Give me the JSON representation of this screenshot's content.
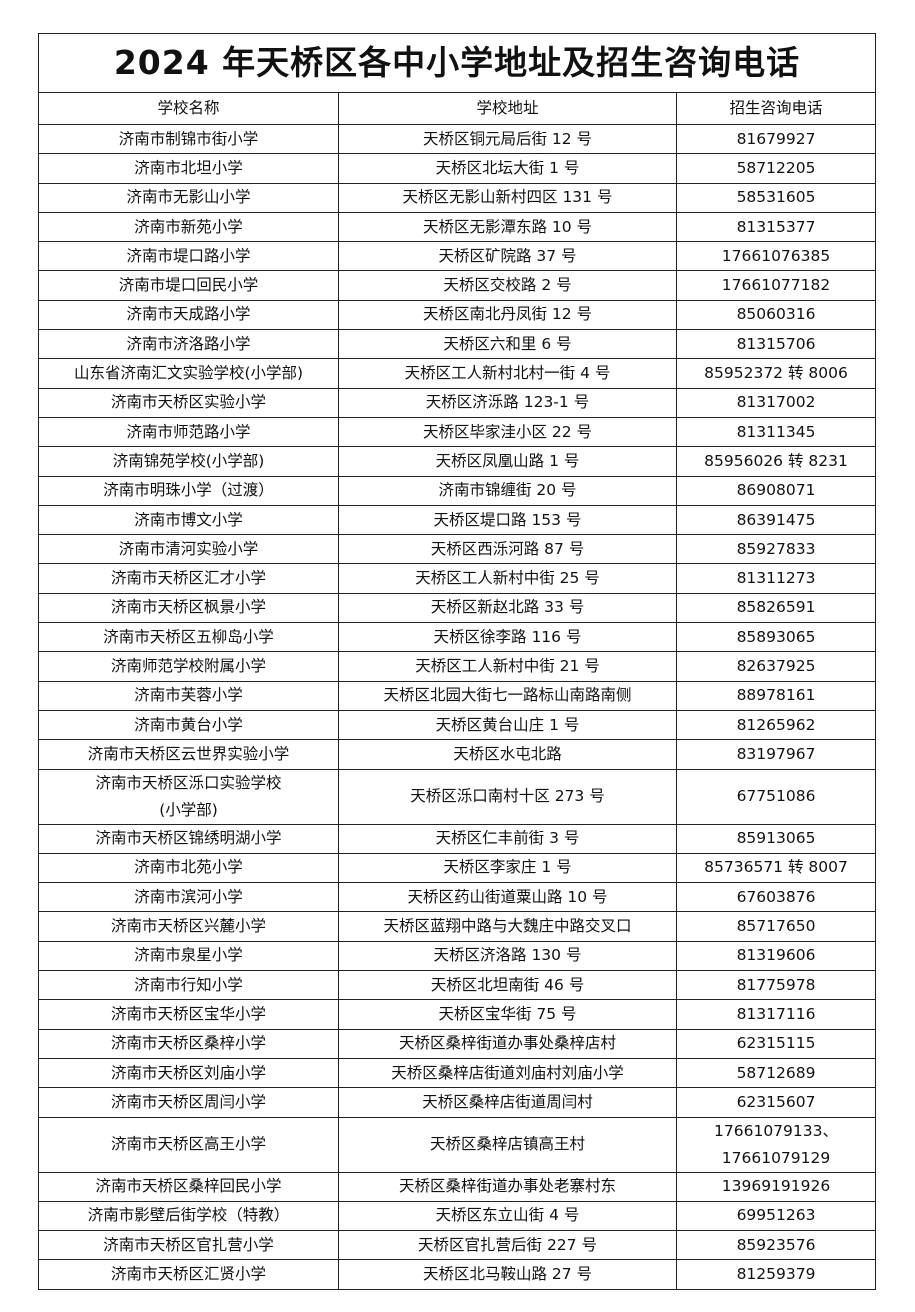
{
  "title": "2024 年天桥区各中小学地址及招生咨询电话",
  "table": {
    "headers": [
      "学校名称",
      "学校地址",
      "招生咨询电话"
    ],
    "rows": [
      [
        "济南市制锦市街小学",
        "天桥区铜元局后街 12 号",
        "81679927"
      ],
      [
        "济南市北坦小学",
        "天桥区北坛大街 1 号",
        "58712205"
      ],
      [
        "济南市无影山小学",
        "天桥区无影山新村四区 131 号",
        "58531605"
      ],
      [
        "济南市新苑小学",
        "天桥区无影潭东路 10 号",
        "81315377"
      ],
      [
        "济南市堤口路小学",
        "天桥区矿院路 37 号",
        "17661076385"
      ],
      [
        "济南市堤口回民小学",
        "天桥区交校路 2 号",
        "17661077182"
      ],
      [
        "济南市天成路小学",
        "天桥区南北丹凤街 12 号",
        "85060316"
      ],
      [
        "济南市济洛路小学",
        "天桥区六和里 6 号",
        "81315706"
      ],
      [
        "山东省济南汇文实验学校(小学部)",
        "天桥区工人新村北村一街 4 号",
        "85952372 转 8006"
      ],
      [
        "济南市天桥区实验小学",
        "天桥区济泺路 123-1 号",
        "81317002"
      ],
      [
        "济南市师范路小学",
        "天桥区毕家洼小区 22 号",
        "81311345"
      ],
      [
        "济南锦苑学校(小学部)",
        "天桥区凤凰山路 1 号",
        "85956026 转 8231"
      ],
      [
        "济南市明珠小学（过渡）",
        "济南市锦缠街 20 号",
        "86908071"
      ],
      [
        "济南市博文小学",
        "天桥区堤口路 153 号",
        "86391475"
      ],
      [
        "济南市清河实验小学",
        "天桥区西泺河路 87 号",
        "85927833"
      ],
      [
        "济南市天桥区汇才小学",
        "天桥区工人新村中街 25 号",
        "81311273"
      ],
      [
        "济南市天桥区枫景小学",
        "天桥区新赵北路 33 号",
        "85826591"
      ],
      [
        "济南市天桥区五柳岛小学",
        "天桥区徐李路 116 号",
        "85893065"
      ],
      [
        "济南师范学校附属小学",
        "天桥区工人新村中街 21 号",
        "82637925"
      ],
      [
        "济南市芙蓉小学",
        "天桥区北园大街七一路标山南路南侧",
        "88978161"
      ],
      [
        "济南市黄台小学",
        "天桥区黄台山庄 1 号",
        "81265962"
      ],
      [
        "济南市天桥区云世界实验小学",
        "天桥区水屯北路",
        "83197967"
      ],
      [
        "济南市天桥区泺口实验学校\n(小学部)",
        "天桥区泺口南村十区 273 号",
        "67751086"
      ],
      [
        "济南市天桥区锦绣明湖小学",
        "天桥区仁丰前街 3 号",
        "85913065"
      ],
      [
        "济南市北苑小学",
        "天桥区李家庄 1 号",
        "85736571 转 8007"
      ],
      [
        "济南市滨河小学",
        "天桥区药山街道粟山路 10 号",
        "67603876"
      ],
      [
        "济南市天桥区兴麓小学",
        "天桥区蓝翔中路与大魏庄中路交叉口",
        "85717650"
      ],
      [
        "济南市泉星小学",
        "天桥区济洛路 130 号",
        "81319606"
      ],
      [
        "济南市行知小学",
        "天桥区北坦南街 46 号",
        "81775978"
      ],
      [
        "济南市天桥区宝华小学",
        "天桥区宝华街 75 号",
        "81317116"
      ],
      [
        "济南市天桥区桑梓小学",
        "天桥区桑梓街道办事处桑梓店村",
        "62315115"
      ],
      [
        "济南市天桥区刘庙小学",
        "天桥区桑梓店街道刘庙村刘庙小学",
        "58712689"
      ],
      [
        "济南市天桥区周闫小学",
        "天桥区桑梓店街道周闫村",
        "62315607"
      ],
      [
        "济南市天桥区高王小学",
        "天桥区桑梓店镇高王村",
        "17661079133、\n17661079129"
      ],
      [
        "济南市天桥区桑梓回民小学",
        "天桥区桑梓街道办事处老寨村东",
        "13969191926"
      ],
      [
        "济南市影壁后街学校（特教）",
        "天桥区东立山街 4 号",
        "69951263"
      ],
      [
        "济南市天桥区官扎营小学",
        "天桥区官扎营后街 227 号",
        "85923576"
      ],
      [
        "济南市天桥区汇贤小学",
        "天桥区北马鞍山路 27 号",
        "81259379"
      ]
    ]
  }
}
